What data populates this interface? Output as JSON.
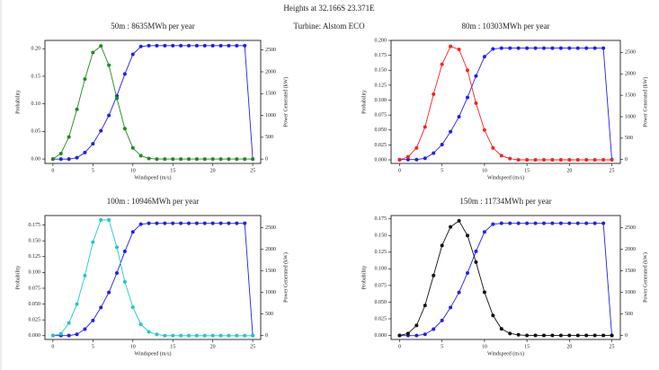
{
  "title": "Heights at 32.166S 23.371E",
  "subtitle": "Turbine: Alstom ECO",
  "chart_data": [
    {
      "type": "line",
      "title": "50m : 8635MWh per year",
      "xlabel": "Windspeed (m/s)",
      "ylabel": "Probability",
      "y2label": "Power Generated (kW)",
      "x": [
        0,
        1,
        2,
        3,
        4,
        5,
        6,
        7,
        8,
        9,
        10,
        11,
        12,
        13,
        14,
        15,
        16,
        17,
        18,
        19,
        20,
        21,
        22,
        23,
        24,
        25
      ],
      "xlim": [
        -1,
        26
      ],
      "xticks": [
        0,
        5,
        10,
        15,
        20,
        25
      ],
      "ylim": [
        -0.008,
        0.215
      ],
      "yticks": [
        {
          "value": 0,
          "label": "0.00"
        },
        {
          "value": 0.05,
          "label": "0.05"
        },
        {
          "value": 0.1,
          "label": "0.10"
        },
        {
          "value": 0.15,
          "label": "0.15"
        },
        {
          "value": 0.2,
          "label": "0.20"
        }
      ],
      "y2lim": [
        -100,
        2720
      ],
      "y2ticks": [
        0,
        500,
        1000,
        1500,
        2000,
        2500
      ],
      "series": [
        {
          "color": "#1e8a1e",
          "values": [
            0,
            0.01,
            0.04,
            0.09,
            0.145,
            0.193,
            0.205,
            0.17,
            0.11,
            0.055,
            0.02,
            0.006,
            0.001,
            0,
            0,
            0,
            0,
            0,
            0,
            0,
            0,
            0,
            0,
            0,
            0,
            0
          ]
        },
        {
          "color": "#2020ee",
          "axis": "y2",
          "values": [
            0,
            0,
            0,
            30,
            150,
            350,
            650,
            1000,
            1450,
            1950,
            2400,
            2580,
            2600,
            2600,
            2600,
            2600,
            2600,
            2600,
            2600,
            2600,
            2600,
            2600,
            2600,
            2600,
            2600,
            0
          ]
        }
      ]
    },
    {
      "type": "line",
      "title": "80m : 10303MWh per year",
      "xlabel": "Windspeed (m/s)",
      "ylabel": "Probability",
      "y2label": "Power Generated (kW)",
      "x": [
        0,
        1,
        2,
        3,
        4,
        5,
        6,
        7,
        8,
        9,
        10,
        11,
        12,
        13,
        14,
        15,
        16,
        17,
        18,
        19,
        20,
        21,
        22,
        23,
        24,
        25
      ],
      "xlim": [
        -1,
        26
      ],
      "xticks": [
        0,
        5,
        10,
        15,
        20,
        25
      ],
      "ylim": [
        -0.006,
        0.2
      ],
      "yticks": [
        {
          "value": 0,
          "label": "0.000"
        },
        {
          "value": 0.025,
          "label": "0.025"
        },
        {
          "value": 0.05,
          "label": "0.050"
        },
        {
          "value": 0.075,
          "label": "0.075"
        },
        {
          "value": 0.1,
          "label": "0.100"
        },
        {
          "value": 0.125,
          "label": "0.125"
        },
        {
          "value": 0.15,
          "label": "0.150"
        },
        {
          "value": 0.175,
          "label": "0.175"
        },
        {
          "value": 0.2,
          "label": "0.200"
        }
      ],
      "y2lim": [
        -90,
        2780
      ],
      "y2ticks": [
        0,
        500,
        1000,
        1500,
        2000,
        2500
      ],
      "series": [
        {
          "color": "#ff2020",
          "values": [
            0,
            0.005,
            0.02,
            0.055,
            0.11,
            0.16,
            0.19,
            0.185,
            0.15,
            0.095,
            0.05,
            0.02,
            0.007,
            0.002,
            0,
            0,
            0,
            0,
            0,
            0,
            0,
            0,
            0,
            0,
            0,
            0
          ]
        },
        {
          "color": "#2020ee",
          "axis": "y2",
          "values": [
            0,
            0,
            0,
            30,
            150,
            350,
            650,
            1000,
            1450,
            1950,
            2400,
            2580,
            2600,
            2600,
            2600,
            2600,
            2600,
            2600,
            2600,
            2600,
            2600,
            2600,
            2600,
            2600,
            2600,
            0
          ]
        }
      ]
    },
    {
      "type": "line",
      "title": "100m : 10946MWh per year",
      "xlabel": "Windspeed (m/s)",
      "ylabel": "Probability",
      "y2label": "Power Generated (kW)",
      "x": [
        0,
        1,
        2,
        3,
        4,
        5,
        6,
        7,
        8,
        9,
        10,
        11,
        12,
        13,
        14,
        15,
        16,
        17,
        18,
        19,
        20,
        21,
        22,
        23,
        24,
        25
      ],
      "xlim": [
        -1,
        26
      ],
      "xticks": [
        0,
        5,
        10,
        15,
        20,
        25
      ],
      "ylim": [
        -0.006,
        0.19
      ],
      "yticks": [
        {
          "value": 0,
          "label": "0.000"
        },
        {
          "value": 0.025,
          "label": "0.025"
        },
        {
          "value": 0.05,
          "label": "0.050"
        },
        {
          "value": 0.075,
          "label": "0.075"
        },
        {
          "value": 0.1,
          "label": "0.100"
        },
        {
          "value": 0.125,
          "label": "0.125"
        },
        {
          "value": 0.15,
          "label": "0.150"
        },
        {
          "value": 0.175,
          "label": "0.175"
        }
      ],
      "y2lim": [
        -90,
        2780
      ],
      "y2ticks": [
        0,
        500,
        1000,
        1500,
        2000,
        2500
      ],
      "series": [
        {
          "color": "#20c8c8",
          "values": [
            0,
            0.003,
            0.02,
            0.05,
            0.095,
            0.148,
            0.183,
            0.183,
            0.14,
            0.085,
            0.045,
            0.018,
            0.006,
            0.002,
            0,
            0,
            0,
            0,
            0,
            0,
            0,
            0,
            0,
            0,
            0,
            0
          ]
        },
        {
          "color": "#2020ee",
          "axis": "y2",
          "values": [
            0,
            0,
            0,
            30,
            150,
            350,
            650,
            1000,
            1450,
            1950,
            2400,
            2580,
            2600,
            2600,
            2600,
            2600,
            2600,
            2600,
            2600,
            2600,
            2600,
            2600,
            2600,
            2600,
            2600,
            0
          ]
        }
      ]
    },
    {
      "type": "line",
      "title": "150m : 11734MWh per year",
      "xlabel": "Windspeed (m/s)",
      "ylabel": "Probability",
      "y2label": "Power Generated (kW)",
      "x": [
        0,
        1,
        2,
        3,
        4,
        5,
        6,
        7,
        8,
        9,
        10,
        11,
        12,
        13,
        14,
        15,
        16,
        17,
        18,
        19,
        20,
        21,
        22,
        23,
        24,
        25
      ],
      "xlim": [
        -1,
        26
      ],
      "xticks": [
        0,
        5,
        10,
        15,
        20,
        25
      ],
      "ylim": [
        -0.006,
        0.18
      ],
      "yticks": [
        {
          "value": 0,
          "label": "0.000"
        },
        {
          "value": 0.025,
          "label": "0.025"
        },
        {
          "value": 0.05,
          "label": "0.050"
        },
        {
          "value": 0.075,
          "label": "0.075"
        },
        {
          "value": 0.1,
          "label": "0.100"
        },
        {
          "value": 0.125,
          "label": "0.125"
        },
        {
          "value": 0.15,
          "label": "0.150"
        },
        {
          "value": 0.175,
          "label": "0.175"
        }
      ],
      "y2lim": [
        -90,
        2780
      ],
      "y2ticks": [
        0,
        500,
        1000,
        1500,
        2000,
        2500
      ],
      "series": [
        {
          "color": "#111111",
          "values": [
            0,
            0.003,
            0.015,
            0.045,
            0.09,
            0.135,
            0.163,
            0.172,
            0.15,
            0.11,
            0.065,
            0.03,
            0.01,
            0.003,
            0.001,
            0,
            0,
            0,
            0,
            0,
            0,
            0,
            0,
            0,
            0,
            0
          ]
        },
        {
          "color": "#2020ee",
          "axis": "y2",
          "values": [
            0,
            0,
            0,
            30,
            150,
            350,
            650,
            1000,
            1450,
            1950,
            2400,
            2580,
            2600,
            2600,
            2600,
            2600,
            2600,
            2600,
            2600,
            2600,
            2600,
            2600,
            2600,
            2600,
            2600,
            0
          ]
        }
      ]
    }
  ]
}
